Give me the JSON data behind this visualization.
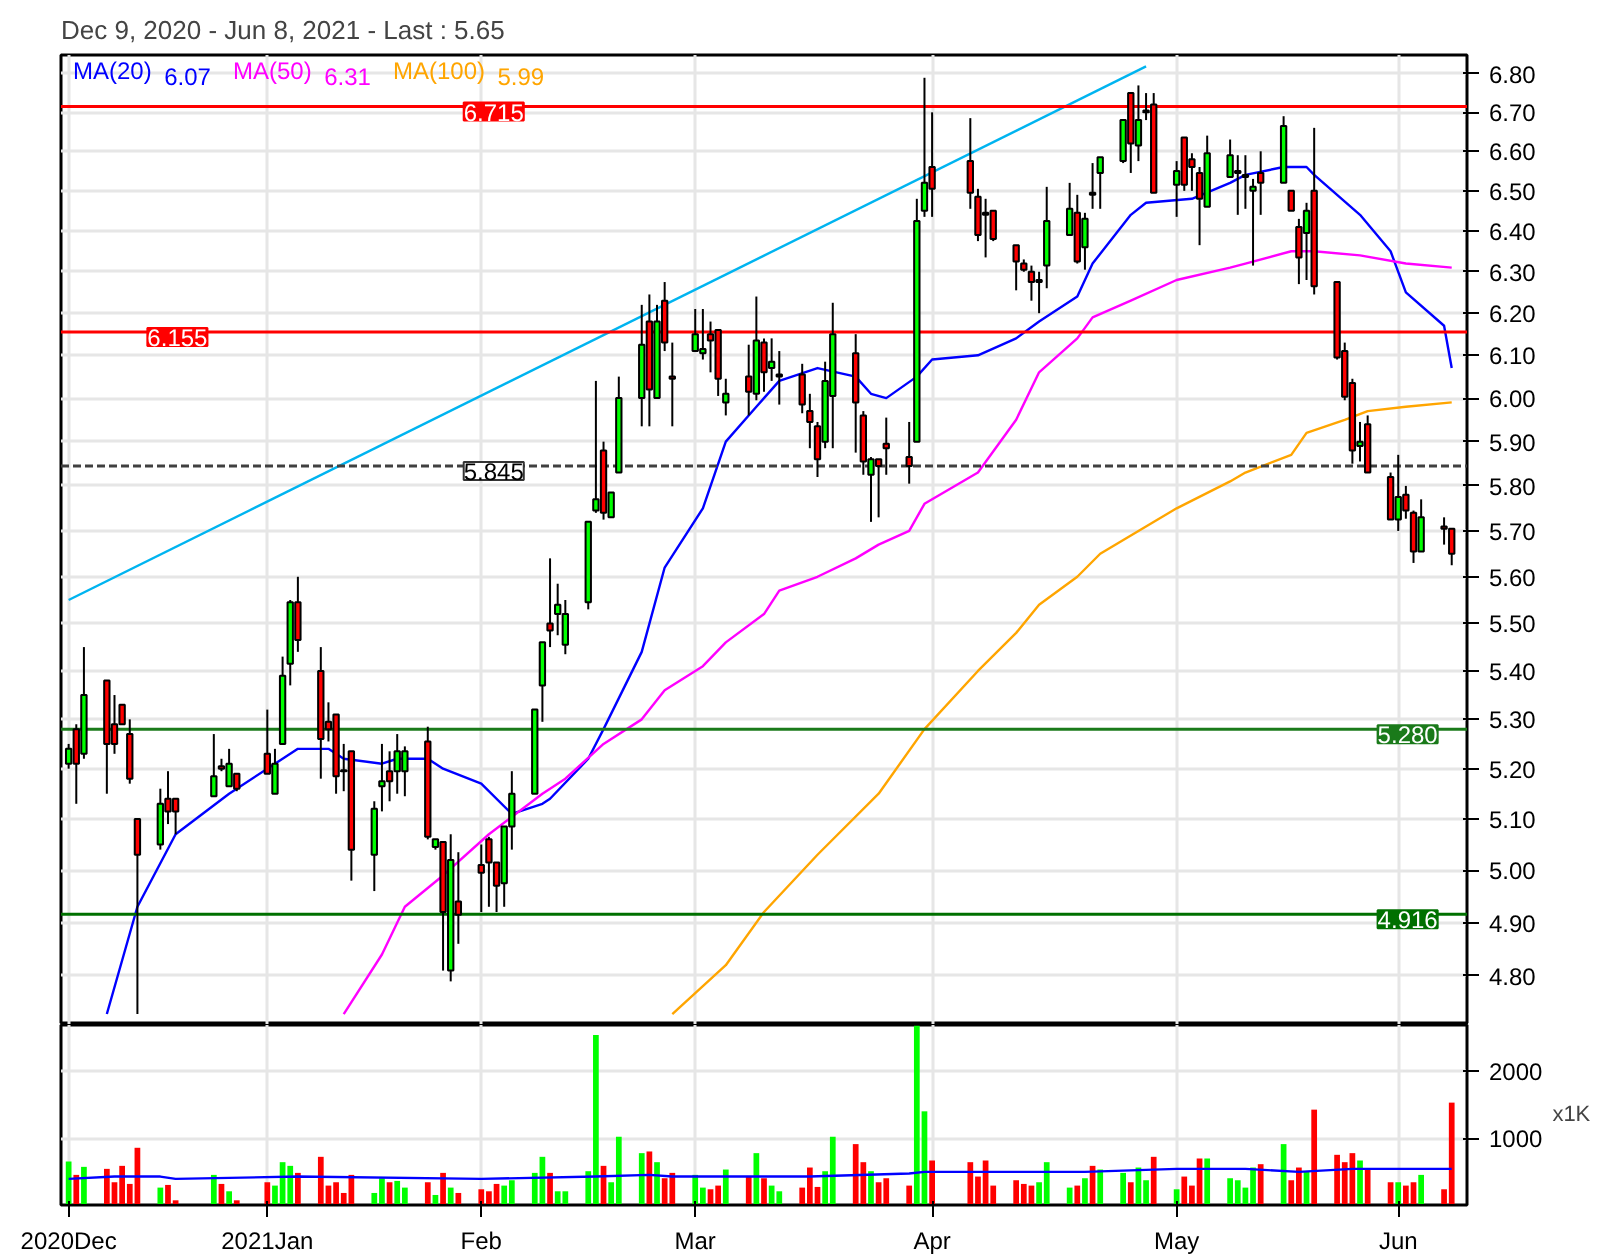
{
  "chart_data": [
    {
      "type": "candlestick",
      "title": "Dec 9, 2020 - Jun 8, 2021 - Last : 5.65",
      "x": [
        "2020-12-09",
        "2020-12-10",
        "2020-12-11",
        "2020-12-14",
        "2020-12-15",
        "2020-12-16",
        "2020-12-17",
        "2020-12-18",
        "2020-12-21",
        "2020-12-22",
        "2020-12-23",
        "2020-12-28",
        "2020-12-29",
        "2020-12-30",
        "2020-12-31",
        "2021-01-04",
        "2021-01-05",
        "2021-01-06",
        "2021-01-07",
        "2021-01-08",
        "2021-01-11",
        "2021-01-12",
        "2021-01-13",
        "2021-01-14",
        "2021-01-15",
        "2021-01-18",
        "2021-01-19",
        "2021-01-20",
        "2021-01-21",
        "2021-01-22",
        "2021-01-25",
        "2021-01-26",
        "2021-01-27",
        "2021-01-28",
        "2021-01-29",
        "2021-02-01",
        "2021-02-02",
        "2021-02-03",
        "2021-02-04",
        "2021-02-05",
        "2021-02-08",
        "2021-02-09",
        "2021-02-10",
        "2021-02-11",
        "2021-02-12",
        "2021-02-15",
        "2021-02-16",
        "2021-02-17",
        "2021-02-18",
        "2021-02-19",
        "2021-02-22",
        "2021-02-23",
        "2021-02-24",
        "2021-02-25",
        "2021-02-26",
        "2021-03-01",
        "2021-03-02",
        "2021-03-03",
        "2021-03-04",
        "2021-03-05",
        "2021-03-08",
        "2021-03-09",
        "2021-03-10",
        "2021-03-11",
        "2021-03-12",
        "2021-03-15",
        "2021-03-16",
        "2021-03-17",
        "2021-03-18",
        "2021-03-19",
        "2021-03-22",
        "2021-03-23",
        "2021-03-24",
        "2021-03-25",
        "2021-03-26",
        "2021-03-29",
        "2021-03-30",
        "2021-03-31",
        "2021-04-01",
        "2021-04-06",
        "2021-04-07",
        "2021-04-08",
        "2021-04-09",
        "2021-04-12",
        "2021-04-13",
        "2021-04-14",
        "2021-04-15",
        "2021-04-16",
        "2021-04-19",
        "2021-04-20",
        "2021-04-21",
        "2021-04-22",
        "2021-04-23",
        "2021-04-26",
        "2021-04-27",
        "2021-04-28",
        "2021-04-29",
        "2021-04-30",
        "2021-05-03",
        "2021-05-04",
        "2021-05-05",
        "2021-05-06",
        "2021-05-07",
        "2021-05-10",
        "2021-05-11",
        "2021-05-12",
        "2021-05-13",
        "2021-05-14",
        "2021-05-17",
        "2021-05-18",
        "2021-05-19",
        "2021-05-20",
        "2021-05-21",
        "2021-05-24",
        "2021-05-25",
        "2021-05-26",
        "2021-05-27",
        "2021-05-28",
        "2021-05-31",
        "2021-06-01",
        "2021-06-02",
        "2021-06-03",
        "2021-06-04",
        "2021-06-07",
        "2021-06-08"
      ],
      "ohlc": [
        [
          5.21,
          5.25,
          5.2,
          5.24
        ],
        [
          5.28,
          5.29,
          5.13,
          5.21
        ],
        [
          5.23,
          5.45,
          5.22,
          5.35
        ],
        [
          5.38,
          5.38,
          5.15,
          5.25
        ],
        [
          5.29,
          5.35,
          5.23,
          5.25
        ],
        [
          5.33,
          5.33,
          5.29,
          5.29
        ],
        [
          5.27,
          5.3,
          5.17,
          5.18
        ],
        [
          5.1,
          5.1,
          4.73,
          5.03
        ],
        [
          5.05,
          5.16,
          5.04,
          5.13
        ],
        [
          5.14,
          5.195,
          5.09,
          5.115
        ],
        [
          5.14,
          5.14,
          5.07,
          5.115
        ],
        [
          5.145,
          5.27,
          5.145,
          5.185
        ],
        [
          5.205,
          5.22,
          5.195,
          5.2
        ],
        [
          5.165,
          5.24,
          5.165,
          5.21
        ],
        [
          5.19,
          5.19,
          5.155,
          5.16
        ],
        [
          5.23,
          5.32,
          5.19,
          5.19
        ],
        [
          5.15,
          5.24,
          5.15,
          5.21
        ],
        [
          5.25,
          5.43,
          5.25,
          5.39
        ],
        [
          5.415,
          5.55,
          5.37,
          5.545
        ],
        [
          5.545,
          5.6,
          5.44,
          5.465
        ],
        [
          5.4,
          5.45,
          5.18,
          5.26
        ],
        [
          5.295,
          5.335,
          5.255,
          5.28
        ],
        [
          5.31,
          5.31,
          5.15,
          5.185
        ],
        [
          5.197,
          5.25,
          5.155,
          5.195
        ],
        [
          5.235,
          5.235,
          4.98,
          5.04
        ],
        [
          5.03,
          5.135,
          4.96,
          5.12
        ],
        [
          5.165,
          5.25,
          5.115,
          5.175
        ],
        [
          5.195,
          5.235,
          5.135,
          5.175
        ],
        [
          5.195,
          5.27,
          5.15,
          5.235
        ],
        [
          5.195,
          5.245,
          5.145,
          5.235
        ],
        [
          5.255,
          5.285,
          5.06,
          5.065
        ],
        [
          5.045,
          5.06,
          5.04,
          5.06
        ],
        [
          5.055,
          5.055,
          4.81,
          4.92
        ],
        [
          4.81,
          5.07,
          4.79,
          5.02
        ],
        [
          4.94,
          5.035,
          4.86,
          4.915
        ],
        [
          5.01,
          5.05,
          4.92,
          4.995
        ],
        [
          5.06,
          5.065,
          4.93,
          5.015
        ],
        [
          5.015,
          5.015,
          4.92,
          4.97
        ],
        [
          4.975,
          5.085,
          4.93,
          5.085
        ],
        [
          5.085,
          5.195,
          5.04,
          5.15
        ],
        [
          5.15,
          5.32,
          5.15,
          5.32
        ],
        [
          5.37,
          5.46,
          5.295,
          5.46
        ],
        [
          5.5,
          5.64,
          5.45,
          5.485
        ],
        [
          5.52,
          5.585,
          5.475,
          5.54
        ],
        [
          5.455,
          5.55,
          5.435,
          5.52
        ],
        [
          5.545,
          5.72,
          5.53,
          5.72
        ],
        [
          5.745,
          6.04,
          5.74,
          5.77
        ],
        [
          5.88,
          5.9,
          5.725,
          5.74
        ],
        [
          5.73,
          5.785,
          5.73,
          5.785
        ],
        [
          5.83,
          6.05,
          5.83,
          6.0
        ],
        [
          6.0,
          6.22,
          5.935,
          6.125
        ],
        [
          6.18,
          6.245,
          5.935,
          6.02
        ],
        [
          6.0,
          6.22,
          6.0,
          6.18
        ],
        [
          6.23,
          6.275,
          6.11,
          6.13
        ],
        [
          6.05,
          6.13,
          5.935,
          6.045
        ],
        [
          6.11,
          6.21,
          6.11,
          6.15
        ],
        [
          6.105,
          6.21,
          6.09,
          6.115
        ],
        [
          6.15,
          6.18,
          6.06,
          6.135
        ],
        [
          6.16,
          6.16,
          6.005,
          6.045
        ],
        [
          5.99,
          6.045,
          5.96,
          6.01
        ],
        [
          6.05,
          6.125,
          5.96,
          6.015
        ],
        [
          6.01,
          6.24,
          5.995,
          6.135
        ],
        [
          6.13,
          6.14,
          6.015,
          6.06
        ],
        [
          6.07,
          6.14,
          6.04,
          6.085
        ],
        [
          6.05,
          6.11,
          5.985,
          6.055
        ],
        [
          6.055,
          6.08,
          5.965,
          5.985
        ],
        [
          5.97,
          6.01,
          5.885,
          5.945
        ],
        [
          5.935,
          5.945,
          5.82,
          5.86
        ],
        [
          5.9,
          6.085,
          5.885,
          6.04
        ],
        [
          6.005,
          6.225,
          5.885,
          6.15
        ],
        [
          6.105,
          6.15,
          5.875,
          5.99
        ],
        [
          5.96,
          5.97,
          5.825,
          5.855
        ],
        [
          5.825,
          5.865,
          5.72,
          5.86
        ],
        [
          5.86,
          5.86,
          5.73,
          5.845
        ],
        [
          5.895,
          5.955,
          5.825,
          5.885
        ],
        [
          5.865,
          5.945,
          5.805,
          5.845
        ],
        [
          5.9,
          6.48,
          5.9,
          6.425
        ],
        [
          6.45,
          6.79,
          6.435,
          6.52
        ],
        [
          6.56,
          6.7,
          6.435,
          6.505
        ],
        [
          6.575,
          6.685,
          6.455,
          6.495
        ],
        [
          6.485,
          6.505,
          6.375,
          6.39
        ],
        [
          6.445,
          6.48,
          6.335,
          6.44
        ],
        [
          6.45,
          6.45,
          6.375,
          6.38
        ],
        [
          6.365,
          6.365,
          6.255,
          6.325
        ],
        [
          6.32,
          6.33,
          6.3,
          6.305
        ],
        [
          6.3,
          6.315,
          6.23,
          6.275
        ],
        [
          6.275,
          6.3,
          6.2,
          6.28
        ],
        [
          6.315,
          6.51,
          6.26,
          6.425
        ],
        [
          6.39,
          6.52,
          6.39,
          6.455
        ],
        [
          6.445,
          6.49,
          6.32,
          6.325
        ],
        [
          6.36,
          6.445,
          6.305,
          6.43
        ],
        [
          6.495,
          6.57,
          6.455,
          6.49
        ],
        [
          6.545,
          6.585,
          6.455,
          6.585
        ],
        [
          6.575,
          6.68,
          6.57,
          6.68
        ],
        [
          6.75,
          6.75,
          6.545,
          6.62
        ],
        [
          6.615,
          6.77,
          6.575,
          6.68
        ],
        [
          6.7,
          6.75,
          6.68,
          6.705
        ],
        [
          6.72,
          6.75,
          6.495,
          6.495
        ],
        [
          6.515,
          6.575,
          6.435,
          6.55
        ],
        [
          6.635,
          6.635,
          6.5,
          6.515
        ],
        [
          6.58,
          6.595,
          6.5,
          6.56
        ],
        [
          6.545,
          6.56,
          6.365,
          6.48
        ],
        [
          6.46,
          6.64,
          6.46,
          6.595
        ],
        [
          6.535,
          6.63,
          6.535,
          6.59
        ],
        [
          6.545,
          6.59,
          6.44,
          6.55
        ],
        [
          6.535,
          6.59,
          6.455,
          6.54
        ],
        [
          6.5,
          6.53,
          6.315,
          6.51
        ],
        [
          6.545,
          6.6,
          6.44,
          6.52
        ],
        [
          6.52,
          6.69,
          6.52,
          6.665
        ],
        [
          6.5,
          6.5,
          6.45,
          6.45
        ],
        [
          6.41,
          6.43,
          6.27,
          6.335
        ],
        [
          6.395,
          6.47,
          6.28,
          6.45
        ],
        [
          6.5,
          6.66,
          6.245,
          6.265
        ],
        [
          6.275,
          6.275,
          6.09,
          6.095
        ],
        [
          6.11,
          6.13,
          5.995,
          6.003
        ],
        [
          6.035,
          6.045,
          5.85,
          5.88
        ],
        [
          5.89,
          5.945,
          5.855,
          5.9
        ],
        [
          5.94,
          5.96,
          5.83,
          5.83
        ],
        [
          5.82,
          5.83,
          5.725,
          5.725
        ],
        [
          5.725,
          5.87,
          5.7,
          5.775
        ],
        [
          5.78,
          5.8,
          5.727,
          5.745
        ],
        [
          5.74,
          5.745,
          5.63,
          5.655
        ],
        [
          5.655,
          5.77,
          5.655,
          5.73
        ],
        [
          5.71,
          5.73,
          5.67,
          5.705
        ],
        [
          5.705,
          5.705,
          5.625,
          5.65
        ]
      ],
      "colors": [
        "#00ff00",
        "#ff0000",
        "#00ff00",
        "#ff0000",
        "#ff0000",
        "#ff0000",
        "#ff0000",
        "#ff0000",
        "#00ff00",
        "#ff0000",
        "#ff0000",
        "#00ff00",
        "#ff0000",
        "#00ff00",
        "#ff0000",
        "#ff0000",
        "#00ff00",
        "#00ff00",
        "#00ff00",
        "#ff0000",
        "#ff0000",
        "#ff0000",
        "#ff0000",
        "#ff0000",
        "#ff0000",
        "#00ff00",
        "#00ff00",
        "#ff0000",
        "#00ff00",
        "#00ff00",
        "#ff0000",
        "#00ff00",
        "#ff0000",
        "#00ff00",
        "#ff0000",
        "#ff0000",
        "#ff0000",
        "#ff0000",
        "#00ff00",
        "#00ff00",
        "#00ff00",
        "#00ff00",
        "#ff0000",
        "#00ff00",
        "#00ff00",
        "#00ff00",
        "#00ff00",
        "#ff0000",
        "#00ff00",
        "#00ff00",
        "#00ff00",
        "#ff0000",
        "#00ff00",
        "#ff0000",
        "#ff0000",
        "#00ff00",
        "#00ff00",
        "#ff0000",
        "#ff0000",
        "#00ff00",
        "#ff0000",
        "#00ff00",
        "#ff0000",
        "#00ff00",
        "#00ff00",
        "#ff0000",
        "#ff0000",
        "#ff0000",
        "#00ff00",
        "#00ff00",
        "#ff0000",
        "#ff0000",
        "#00ff00",
        "#ff0000",
        "#ff0000",
        "#ff0000",
        "#00ff00",
        "#00ff00",
        "#ff0000",
        "#ff0000",
        "#ff0000",
        "#ff0000",
        "#ff0000",
        "#ff0000",
        "#ff0000",
        "#ff0000",
        "#00ff00",
        "#00ff00",
        "#00ff00",
        "#ff0000",
        "#00ff00",
        "#ff0000",
        "#00ff00",
        "#00ff00",
        "#ff0000",
        "#00ff00",
        "#00ff00",
        "#ff0000",
        "#00ff00",
        "#ff0000",
        "#ff0000",
        "#ff0000",
        "#00ff00",
        "#00ff00",
        "#00ff00",
        "#00ff00",
        "#00ff00",
        "#ff0000",
        "#00ff00",
        "#ff0000",
        "#ff0000",
        "#00ff00",
        "#ff0000",
        "#ff0000",
        "#ff0000",
        "#ff0000",
        "#00ff00",
        "#ff0000",
        "#ff0000",
        "#00ff00",
        "#ff0000",
        "#ff0000",
        "#00ff00",
        "#ff0000",
        "#ff0000"
      ],
      "series": [
        {
          "type": "line",
          "name": "MA(20)",
          "color": "#0000ff",
          "x": [
            "2020-12-14",
            "2020-12-18",
            "2020-12-23",
            "2020-12-30",
            "2021-01-05",
            "2021-01-08",
            "2021-01-12",
            "2021-01-14",
            "2021-01-19",
            "2021-01-21",
            "2021-01-25",
            "2021-01-27",
            "2021-02-01",
            "2021-02-05",
            "2021-02-09",
            "2021-02-10",
            "2021-02-15",
            "2021-02-17",
            "2021-02-22",
            "2021-02-25",
            "2021-03-02",
            "2021-03-05",
            "2021-03-09",
            "2021-03-12",
            "2021-03-17",
            "2021-03-22",
            "2021-03-24",
            "2021-03-26",
            "2021-03-30",
            "2021-04-01",
            "2021-04-07",
            "2021-04-12",
            "2021-04-15",
            "2021-04-20",
            "2021-04-22",
            "2021-04-27",
            "2021-04-29",
            "2021-05-05",
            "2021-05-10",
            "2021-05-12",
            "2021-05-17",
            "2021-05-20",
            "2021-05-21",
            "2021-05-27",
            "2021-05-31",
            "2021-06-02",
            "2021-06-07",
            "2021-06-08"
          ],
          "values": [
            4.73,
            4.93,
            5.07,
            5.15,
            5.21,
            5.24,
            5.24,
            5.22,
            5.21,
            5.22,
            5.22,
            5.2,
            5.17,
            5.11,
            5.13,
            5.14,
            5.22,
            5.28,
            5.44,
            5.62,
            5.75,
            5.9,
            5.98,
            6.04,
            6.07,
            6.05,
            6.01,
            6.0,
            6.05,
            6.09,
            6.1,
            6.14,
            6.18,
            6.24,
            6.32,
            6.44,
            6.47,
            6.48,
            6.52,
            6.54,
            6.56,
            6.56,
            6.54,
            6.44,
            6.35,
            6.25,
            6.17,
            6.07
          ]
        },
        {
          "type": "line",
          "name": "MA(50)",
          "color": "#ff00ff",
          "x": [
            "2021-01-14",
            "2021-01-19",
            "2021-01-22",
            "2021-01-27",
            "2021-02-02",
            "2021-02-09",
            "2021-02-12",
            "2021-02-17",
            "2021-02-22",
            "2021-02-25",
            "2021-03-02",
            "2021-03-05",
            "2021-03-10",
            "2021-03-12",
            "2021-03-17",
            "2021-03-22",
            "2021-03-25",
            "2021-03-29",
            "2021-03-31",
            "2021-04-07",
            "2021-04-12",
            "2021-04-15",
            "2021-04-20",
            "2021-04-22",
            "2021-04-27",
            "2021-05-03",
            "2021-05-10",
            "2021-05-12",
            "2021-05-18",
            "2021-05-21",
            "2021-05-27",
            "2021-06-02",
            "2021-06-08"
          ],
          "values": [
            4.73,
            4.84,
            4.93,
            4.99,
            5.07,
            5.15,
            5.18,
            5.25,
            5.3,
            5.36,
            5.41,
            5.46,
            5.52,
            5.57,
            5.6,
            5.64,
            5.67,
            5.7,
            5.76,
            5.83,
            5.95,
            6.06,
            6.14,
            6.19,
            6.23,
            6.28,
            6.31,
            6.32,
            6.35,
            6.35,
            6.34,
            6.32,
            6.31
          ]
        },
        {
          "type": "line",
          "name": "MA(100)",
          "color": "#ffa500",
          "x": [
            "2021-02-26",
            "2021-03-05",
            "2021-03-10",
            "2021-03-17",
            "2021-03-25",
            "2021-03-31",
            "2021-04-07",
            "2021-04-12",
            "2021-04-15",
            "2021-04-20",
            "2021-04-23",
            "2021-04-28",
            "2021-05-03",
            "2021-05-10",
            "2021-05-12",
            "2021-05-18",
            "2021-05-20",
            "2021-05-25",
            "2021-05-28",
            "2021-06-02",
            "2021-06-08"
          ],
          "values": [
            4.73,
            4.82,
            4.92,
            5.03,
            5.15,
            5.28,
            5.4,
            5.48,
            5.54,
            5.6,
            5.65,
            5.7,
            5.75,
            5.81,
            5.83,
            5.87,
            5.92,
            5.95,
            5.97,
            5.98,
            5.99
          ]
        },
        {
          "type": "line",
          "color": "#00b4f0",
          "x": [
            "2020-12-09",
            "2021-04-29"
          ],
          "values": [
            5.55,
            6.82
          ]
        }
      ],
      "annotations": [
        "6.07",
        "6.31",
        "5.99"
      ],
      "ref_lines": [
        {
          "axis": "y",
          "value": 6.715,
          "label": "6.715",
          "color": "#ff0000"
        },
        {
          "axis": "y",
          "value": 6.155,
          "label": "6.155",
          "color": "#ff0000"
        },
        {
          "axis": "y",
          "value": 5.845,
          "label": "5.845",
          "color": "#404040",
          "line_style": "dashed"
        },
        {
          "axis": "y",
          "value": 5.28,
          "label": "5.280",
          "color": "#1a7a1a"
        },
        {
          "axis": "y",
          "value": 4.916,
          "label": "4.916",
          "color": "#007000"
        }
      ],
      "xlim": [
        "2020-12-08",
        "2021-06-10"
      ],
      "xticks": [
        {
          "value": "2020-12-09",
          "label": null
        },
        {
          "value": "2021-01-04",
          "label": null
        },
        {
          "value": "2021-02-01",
          "label": null
        },
        {
          "value": "2021-03-01",
          "label": null
        },
        {
          "value": "2021-04-01",
          "label": null
        },
        {
          "value": "2021-05-03",
          "label": null
        },
        {
          "value": "2021-06-01",
          "label": null
        }
      ],
      "ylim": [
        4.71,
        6.85
      ],
      "yticks": [
        {
          "value": 4.8,
          "label": "4.80"
        },
        {
          "value": 4.9,
          "label": "4.90"
        },
        {
          "value": 5.0,
          "label": "5.00"
        },
        {
          "value": 5.1,
          "label": "5.10"
        },
        {
          "value": 5.2,
          "label": "5.20"
        },
        {
          "value": 5.3,
          "label": "5.30"
        },
        {
          "value": 5.4,
          "label": "5.40"
        },
        {
          "value": 5.5,
          "label": "5.50"
        },
        {
          "value": 5.6,
          "label": "5.60"
        },
        {
          "value": 5.7,
          "label": "5.70"
        },
        {
          "value": 5.8,
          "label": "5.80"
        },
        {
          "value": 5.9,
          "label": "5.90"
        },
        {
          "value": 6.0,
          "label": "6.00"
        },
        {
          "value": 6.1,
          "label": "6.10"
        },
        {
          "value": 6.2,
          "label": "6.20"
        },
        {
          "value": 6.3,
          "label": "6.30"
        },
        {
          "value": 6.4,
          "label": "6.40"
        },
        {
          "value": 6.5,
          "label": "6.50"
        },
        {
          "value": 6.6,
          "label": "6.60"
        },
        {
          "value": 6.7,
          "label": "6.70"
        },
        {
          "value": 6.8,
          "label": "6.80"
        }
      ],
      "log": true,
      "grid": true,
      "legend": "top left",
      "tick_labels": "y"
    },
    {
      "type": "bar",
      "x": [
        "2020-12-09",
        "2020-12-10",
        "2020-12-11",
        "2020-12-14",
        "2020-12-15",
        "2020-12-16",
        "2020-12-17",
        "2020-12-18",
        "2020-12-21",
        "2020-12-22",
        "2020-12-23",
        "2020-12-28",
        "2020-12-29",
        "2020-12-30",
        "2020-12-31",
        "2021-01-04",
        "2021-01-05",
        "2021-01-06",
        "2021-01-07",
        "2021-01-08",
        "2021-01-11",
        "2021-01-12",
        "2021-01-13",
        "2021-01-14",
        "2021-01-15",
        "2021-01-18",
        "2021-01-19",
        "2021-01-20",
        "2021-01-21",
        "2021-01-22",
        "2021-01-25",
        "2021-01-26",
        "2021-01-27",
        "2021-01-28",
        "2021-01-29",
        "2021-02-01",
        "2021-02-02",
        "2021-02-03",
        "2021-02-04",
        "2021-02-05",
        "2021-02-08",
        "2021-02-09",
        "2021-02-10",
        "2021-02-11",
        "2021-02-12",
        "2021-02-15",
        "2021-02-16",
        "2021-02-17",
        "2021-02-18",
        "2021-02-19",
        "2021-02-22",
        "2021-02-23",
        "2021-02-24",
        "2021-02-25",
        "2021-02-26",
        "2021-03-01",
        "2021-03-02",
        "2021-03-03",
        "2021-03-04",
        "2021-03-05",
        "2021-03-08",
        "2021-03-09",
        "2021-03-10",
        "2021-03-11",
        "2021-03-12",
        "2021-03-15",
        "2021-03-16",
        "2021-03-17",
        "2021-03-18",
        "2021-03-19",
        "2021-03-22",
        "2021-03-23",
        "2021-03-24",
        "2021-03-25",
        "2021-03-26",
        "2021-03-29",
        "2021-03-30",
        "2021-03-31",
        "2021-04-01",
        "2021-04-06",
        "2021-04-07",
        "2021-04-08",
        "2021-04-09",
        "2021-04-12",
        "2021-04-13",
        "2021-04-14",
        "2021-04-15",
        "2021-04-16",
        "2021-04-19",
        "2021-04-20",
        "2021-04-21",
        "2021-04-22",
        "2021-04-23",
        "2021-04-26",
        "2021-04-27",
        "2021-04-28",
        "2021-04-29",
        "2021-04-30",
        "2021-05-03",
        "2021-05-04",
        "2021-05-05",
        "2021-05-06",
        "2021-05-07",
        "2021-05-10",
        "2021-05-11",
        "2021-05-12",
        "2021-05-13",
        "2021-05-14",
        "2021-05-17",
        "2021-05-18",
        "2021-05-19",
        "2021-05-20",
        "2021-05-21",
        "2021-05-24",
        "2021-05-25",
        "2021-05-26",
        "2021-05-27",
        "2021-05-28",
        "2021-05-31",
        "2021-06-01",
        "2021-06-02",
        "2021-06-03",
        "2021-06-04",
        "2021-06-07",
        "2021-06-08"
      ],
      "values": [
        650,
        450,
        570,
        540,
        340,
        585,
        315,
        855,
        260,
        300,
        70,
        450,
        315,
        205,
        70,
        340,
        290,
        640,
        585,
        480,
        720,
        290,
        340,
        180,
        450,
        180,
        400,
        340,
        360,
        260,
        340,
        150,
        480,
        260,
        180,
        235,
        205,
        315,
        290,
        370,
        480,
        720,
        480,
        205,
        205,
        505,
        2540,
        585,
        340,
        1020,
        775,
        800,
        640,
        400,
        480,
        450,
        260,
        235,
        290,
        530,
        425,
        775,
        400,
        290,
        205,
        260,
        560,
        270,
        505,
        1020,
        910,
        640,
        505,
        340,
        400,
        290,
        2680,
        1400,
        665,
        640,
        425,
        665,
        290,
        370,
        315,
        290,
        340,
        640,
        260,
        290,
        400,
        585,
        530,
        480,
        340,
        560,
        370,
        720,
        235,
        425,
        290,
        695,
        695,
        400,
        370,
        260,
        560,
        610,
        910,
        370,
        560,
        505,
        1425,
        750,
        640,
        775,
        665,
        530,
        340,
        340,
        290,
        340,
        450,
        235,
        1530
      ],
      "colors": [
        "#00ff00",
        "#ff0000",
        "#00ff00",
        "#ff0000",
        "#ff0000",
        "#ff0000",
        "#ff0000",
        "#ff0000",
        "#00ff00",
        "#ff0000",
        "#ff0000",
        "#00ff00",
        "#ff0000",
        "#00ff00",
        "#ff0000",
        "#ff0000",
        "#00ff00",
        "#00ff00",
        "#00ff00",
        "#ff0000",
        "#ff0000",
        "#ff0000",
        "#ff0000",
        "#ff0000",
        "#ff0000",
        "#00ff00",
        "#00ff00",
        "#ff0000",
        "#00ff00",
        "#00ff00",
        "#ff0000",
        "#00ff00",
        "#ff0000",
        "#00ff00",
        "#ff0000",
        "#ff0000",
        "#ff0000",
        "#ff0000",
        "#00ff00",
        "#00ff00",
        "#00ff00",
        "#00ff00",
        "#ff0000",
        "#00ff00",
        "#00ff00",
        "#00ff00",
        "#00ff00",
        "#ff0000",
        "#00ff00",
        "#00ff00",
        "#00ff00",
        "#ff0000",
        "#00ff00",
        "#ff0000",
        "#ff0000",
        "#00ff00",
        "#00ff00",
        "#ff0000",
        "#ff0000",
        "#00ff00",
        "#ff0000",
        "#00ff00",
        "#ff0000",
        "#00ff00",
        "#00ff00",
        "#ff0000",
        "#ff0000",
        "#ff0000",
        "#00ff00",
        "#00ff00",
        "#ff0000",
        "#ff0000",
        "#00ff00",
        "#ff0000",
        "#ff0000",
        "#ff0000",
        "#00ff00",
        "#00ff00",
        "#ff0000",
        "#ff0000",
        "#ff0000",
        "#ff0000",
        "#ff0000",
        "#ff0000",
        "#ff0000",
        "#ff0000",
        "#00ff00",
        "#00ff00",
        "#00ff00",
        "#ff0000",
        "#00ff00",
        "#ff0000",
        "#00ff00",
        "#00ff00",
        "#ff0000",
        "#00ff00",
        "#00ff00",
        "#ff0000",
        "#00ff00",
        "#ff0000",
        "#ff0000",
        "#ff0000",
        "#00ff00",
        "#00ff00",
        "#00ff00",
        "#00ff00",
        "#00ff00",
        "#ff0000",
        "#00ff00",
        "#ff0000",
        "#ff0000",
        "#00ff00",
        "#ff0000",
        "#ff0000",
        "#ff0000",
        "#ff0000",
        "#00ff00",
        "#ff0000",
        "#ff0000",
        "#00ff00",
        "#ff0000",
        "#ff0000",
        "#00ff00",
        "#ff0000",
        "#ff0000"
      ],
      "series": [
        {
          "type": "line",
          "color": "#0000ff",
          "x": [
            "2020-12-09",
            "2020-12-15",
            "2020-12-21",
            "2020-12-23",
            "2021-01-08",
            "2021-02-01",
            "2021-02-16",
            "2021-02-23",
            "2021-02-26",
            "2021-03-16",
            "2021-03-29",
            "2021-03-31",
            "2021-04-21",
            "2021-05-03",
            "2021-05-12",
            "2021-05-19",
            "2021-05-26",
            "2021-06-08"
          ],
          "values": [
            390,
            425,
            425,
            390,
            425,
            390,
            425,
            450,
            425,
            425,
            470,
            495,
            495,
            540,
            540,
            495,
            540,
            540
          ]
        }
      ],
      "ylabel": "x1K",
      "xlim": [
        "2020-12-08",
        "2021-06-10"
      ],
      "xticks": [
        {
          "value": "2020-12-09",
          "label": "2020Dec"
        },
        {
          "value": "2021-01-04",
          "label": "2021Jan"
        },
        {
          "value": "2021-02-01",
          "label": "Feb"
        },
        {
          "value": "2021-03-01",
          "label": "Mar"
        },
        {
          "value": "2021-04-01",
          "label": "Apr"
        },
        {
          "value": "2021-05-03",
          "label": "May"
        },
        {
          "value": "2021-06-01",
          "label": "Jun"
        }
      ],
      "ylim": [
        0,
        2690
      ],
      "yticks": [
        1000,
        2000
      ],
      "grid": true
    }
  ]
}
